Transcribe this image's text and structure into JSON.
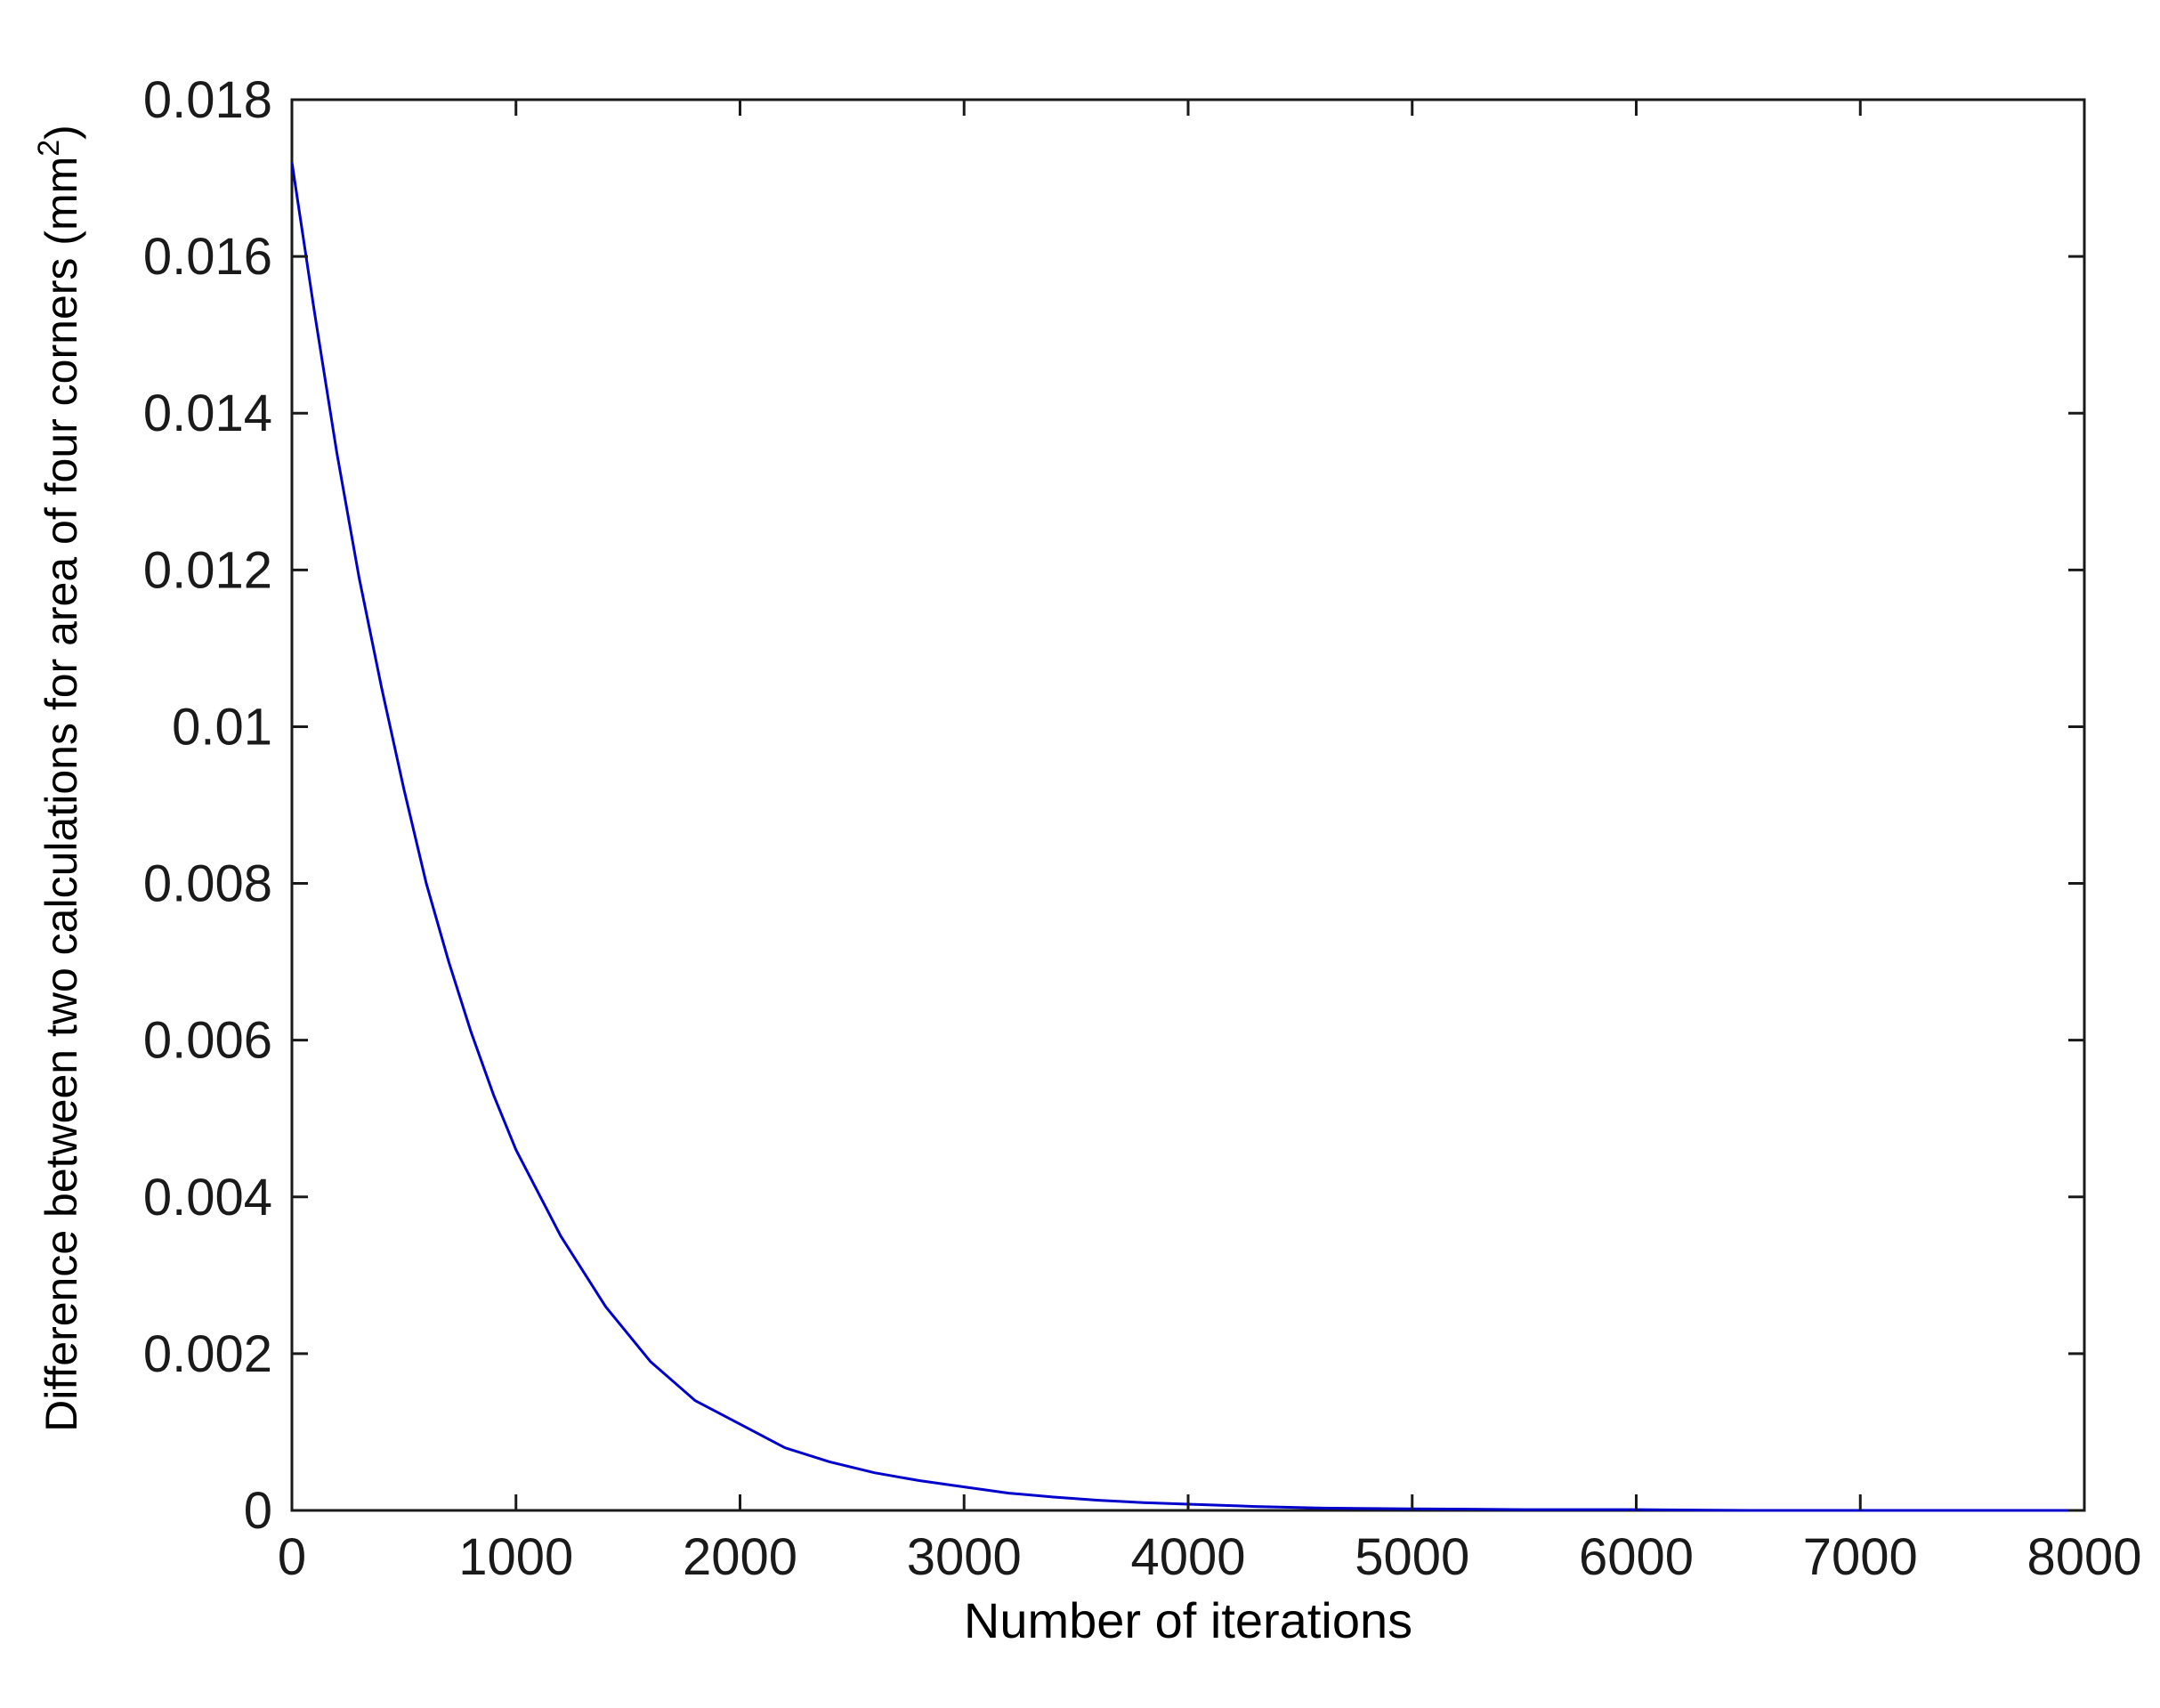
{
  "chart_data": {
    "type": "line",
    "title": "",
    "xlabel": "Number of iterations",
    "ylabel": "Difference between two calculations for area of four corners (mm2)",
    "ylabel_parts": {
      "main": "Difference between two calculations for area of four corners (mm",
      "superscript": "2",
      "close": ")"
    },
    "xlim": [
      0,
      8000
    ],
    "ylim": [
      0,
      0.018
    ],
    "grid": false,
    "legend": "none",
    "x_ticks": [
      "0",
      "1000",
      "2000",
      "3000",
      "4000",
      "5000",
      "6000",
      "7000",
      "8000"
    ],
    "y_ticks": [
      "0",
      "0.002",
      "0.004",
      "0.006",
      "0.008",
      "0.01",
      "0.012",
      "0.014",
      "0.016",
      "0.018"
    ],
    "series": [
      {
        "color": "#0000cc",
        "x": [
          0,
          100,
          200,
          300,
          400,
          500,
          600,
          700,
          800,
          900,
          1000,
          1200,
          1400,
          1600,
          1800,
          2000,
          2200,
          2400,
          2600,
          2800,
          3000,
          3200,
          3400,
          3600,
          3800,
          4000,
          4300,
          4600,
          5000,
          5500,
          6000,
          6500,
          7000,
          7500,
          8000
        ],
        "y": [
          0.0172,
          0.0153,
          0.0135,
          0.0119,
          0.0105,
          0.0092,
          0.008,
          0.007,
          0.0061,
          0.0053,
          0.0046,
          0.0035,
          0.0026,
          0.0019,
          0.0014,
          0.0011,
          0.0008,
          0.00062,
          0.00048,
          0.00038,
          0.0003,
          0.00022,
          0.00017,
          0.00013,
          0.0001,
          8e-05,
          5e-05,
          3e-05,
          2e-05,
          1e-05,
          1e-05,
          0.0,
          0.0,
          0.0,
          0.0
        ]
      }
    ]
  }
}
